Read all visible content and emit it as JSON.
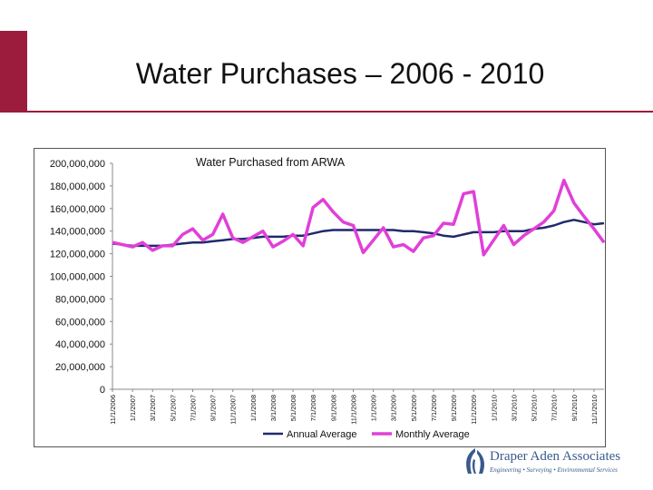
{
  "slide": {
    "title": "Water Purchases – 2006  - 2010"
  },
  "chart_data": {
    "type": "line",
    "title": "Water Purchased from ARWA",
    "xlabel": "",
    "ylabel": "",
    "ylim": [
      0,
      200000000
    ],
    "y_ticks": [
      "0",
      "20,000,000",
      "40,000,000",
      "60,000,000",
      "80,000,000",
      "100,000,000",
      "120,000,000",
      "140,000,000",
      "160,000,000",
      "180,000,000",
      "200,000,000"
    ],
    "x_tick_labels": [
      "11/1/2006",
      "1/1/2007",
      "3/1/2007",
      "5/1/2007",
      "7/1/2007",
      "9/1/2007",
      "11/1/2007",
      "1/1/2008",
      "3/1/2008",
      "5/1/2008",
      "7/1/2008",
      "9/1/2008",
      "11/1/2008",
      "1/1/2009",
      "3/1/2009",
      "5/1/2009",
      "7/1/2009",
      "9/1/2009",
      "11/1/2009",
      "1/1/2010",
      "3/1/2010",
      "5/1/2010",
      "7/1/2010",
      "9/1/2010",
      "11/1/2010"
    ],
    "series": [
      {
        "name": "Annual Average",
        "color": "#1f2a6b",
        "values": [
          129000000,
          128000000,
          127000000,
          127000000,
          127000000,
          127000000,
          128000000,
          129000000,
          130000000,
          130000000,
          131000000,
          132000000,
          133000000,
          133000000,
          134000000,
          135000000,
          135000000,
          135000000,
          136000000,
          136000000,
          138000000,
          140000000,
          141000000,
          141000000,
          141000000,
          141000000,
          141000000,
          141000000,
          141000000,
          140000000,
          140000000,
          139000000,
          138000000,
          136000000,
          135000000,
          137000000,
          139000000,
          139000000,
          139000000,
          140000000,
          140000000,
          140000000,
          142000000,
          143000000,
          145000000,
          148000000,
          150000000,
          148000000,
          146000000,
          147000000
        ]
      },
      {
        "name": "Monthly Average",
        "color": "#e040d8",
        "values": [
          130000000,
          128000000,
          126000000,
          130000000,
          123000000,
          127000000,
          127000000,
          137000000,
          142000000,
          132000000,
          137000000,
          155000000,
          134000000,
          130000000,
          135000000,
          140000000,
          126000000,
          131000000,
          137000000,
          127000000,
          161000000,
          168000000,
          157000000,
          148000000,
          145000000,
          121000000,
          132000000,
          143000000,
          126000000,
          128000000,
          122000000,
          134000000,
          136000000,
          147000000,
          146000000,
          173000000,
          175000000,
          119000000,
          132000000,
          145000000,
          128000000,
          136000000,
          142000000,
          148000000,
          158000000,
          185000000,
          165000000,
          153000000,
          142000000,
          130000000
        ]
      }
    ],
    "legend": "bottom"
  },
  "branding": {
    "company": "Draper Aden Associates",
    "tagline": "Engineering • Surveying • Environmental Services",
    "color": "#3a5a8c"
  }
}
